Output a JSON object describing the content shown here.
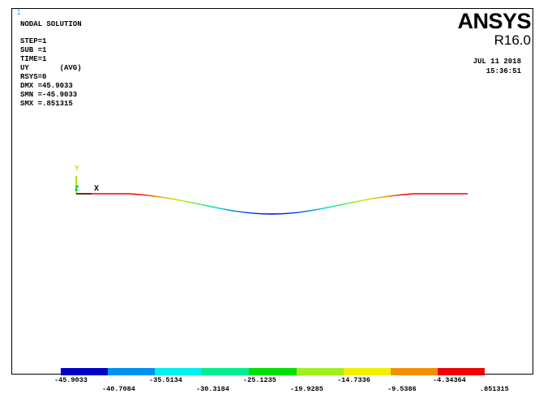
{
  "window_number": "1",
  "title": "NODAL SOLUTION",
  "info": [
    "STEP=1",
    "SUB =1",
    "TIME=1",
    "UY       (AVG)",
    "RSYS=0",
    "DMX =45.9033",
    "SMN =-45.9033",
    "SMX =.851315"
  ],
  "brand": {
    "logo": "ANSYS",
    "version": "R16.0"
  },
  "date": "JUL 11 2018",
  "time": "15:36:51",
  "axes": {
    "y": "Y",
    "z": "Z",
    "x": "X"
  },
  "colors": {
    "c1": "#0000c8",
    "c2": "#0090f0",
    "c3": "#00f0f0",
    "c4": "#00f090",
    "c5": "#00e000",
    "c6": "#a0f020",
    "c7": "#f0f000",
    "c8": "#f09000",
    "c9": "#f00000",
    "window_number": "#38b8ff"
  },
  "legend": {
    "labels_top": [
      "-45.9033",
      "-35.5134",
      "-25.1235",
      "-14.7336",
      "-4.34364"
    ],
    "labels_bottom": [
      "-40.7084",
      "-30.3184",
      "-19.9285",
      "-9.5386",
      ".851315"
    ]
  }
}
